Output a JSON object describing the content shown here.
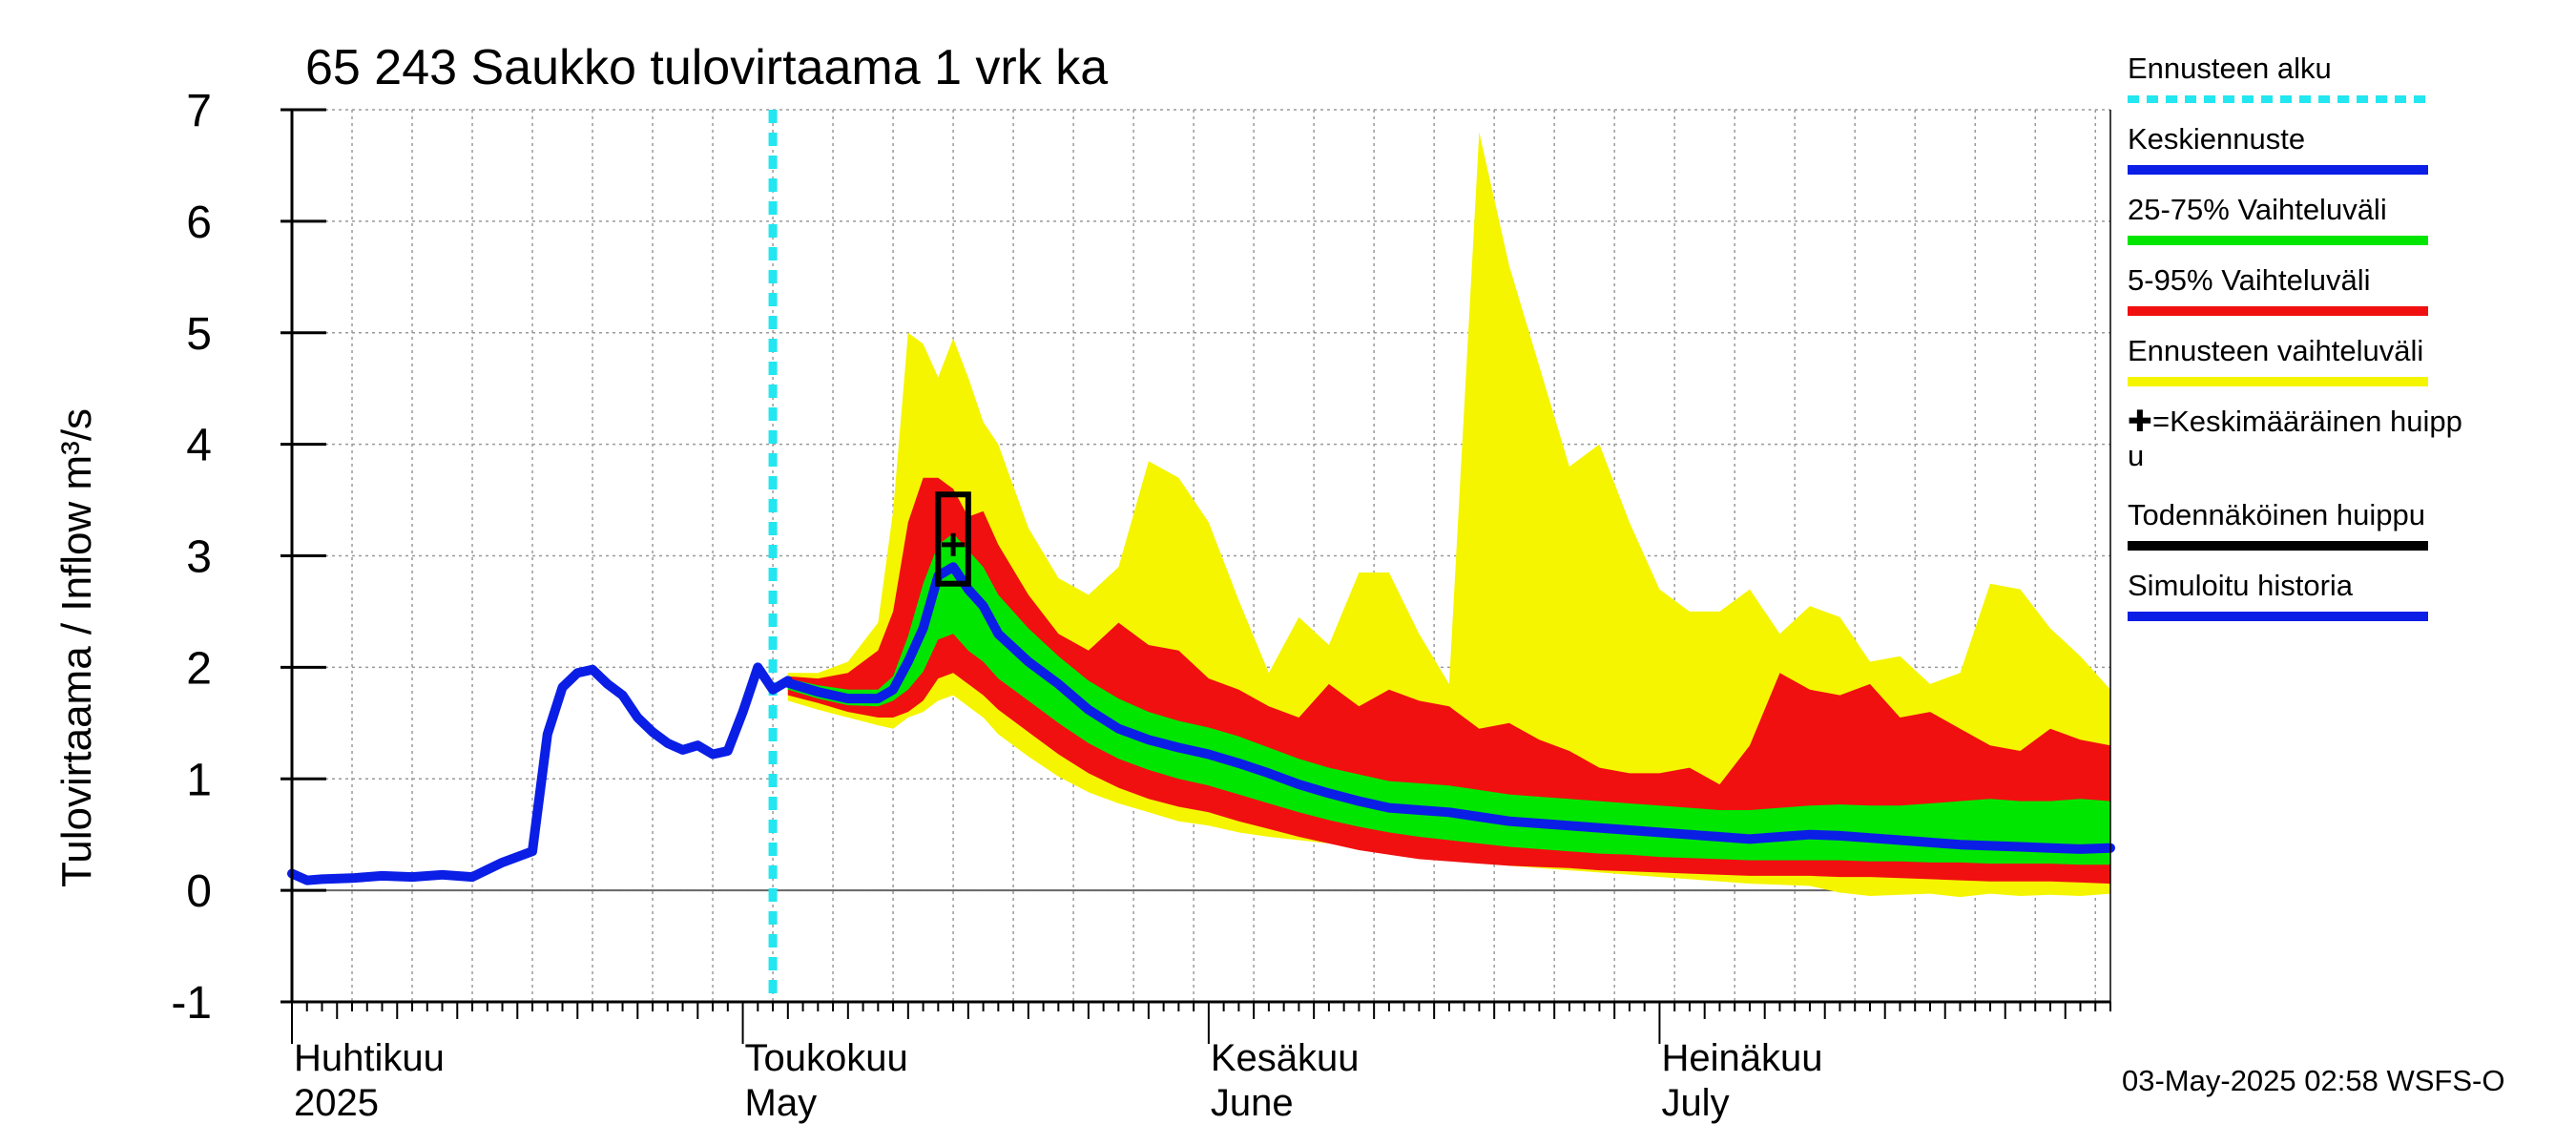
{
  "chart_data": {
    "type": "area",
    "title": "65 243 Saukko tulovirtaama 1 vrk ka",
    "ylabel": "Tulovirtaama / Inflow    m³/s",
    "ylim": [
      -1,
      7
    ],
    "yticks": [
      "-1",
      "0",
      "1",
      "2",
      "3",
      "4",
      "5",
      "6",
      "7"
    ],
    "x_range": [
      "2025-04-01",
      "2025-07-31"
    ],
    "forecast_start": "2025-05-03",
    "month_labels": [
      {
        "date": "2025-04-01",
        "fi": "Huhtikuu",
        "en": "2025"
      },
      {
        "date": "2025-05-01",
        "fi": "Toukokuu",
        "en": "May"
      },
      {
        "date": "2025-06-01",
        "fi": "Kesäkuu",
        "en": "June"
      },
      {
        "date": "2025-07-01",
        "fi": "Heinäkuu",
        "en": "July"
      }
    ],
    "grid": true,
    "legend_position": "right",
    "legend": [
      {
        "label": "Ennusteen alku",
        "color": "#22e6f0",
        "style": "dotted"
      },
      {
        "label": "Keskiennuste",
        "color": "#0a1ee6",
        "style": "line"
      },
      {
        "label": "25-75% Vaihteluväli",
        "color": "#00e600",
        "style": "line"
      },
      {
        "label": "5-95% Vaihteluväli",
        "color": "#f01010",
        "style": "line"
      },
      {
        "label": "Ennusteen vaihteluväli",
        "color": "#f5f500",
        "style": "line"
      },
      {
        "label": "✚=Keskimääräinen huipp",
        "label2": "u",
        "style": "text"
      },
      {
        "label": "Todennäköinen huippu",
        "color": "#000000",
        "style": "line"
      },
      {
        "label": "Simuloitu historia",
        "color": "#0a1ee6",
        "style": "line"
      }
    ],
    "history": {
      "x": [
        "2025-04-01",
        "2025-04-02",
        "2025-04-03",
        "2025-04-05",
        "2025-04-07",
        "2025-04-09",
        "2025-04-11",
        "2025-04-13",
        "2025-04-15",
        "2025-04-17",
        "2025-04-18",
        "2025-04-19",
        "2025-04-20",
        "2025-04-21",
        "2025-04-22",
        "2025-04-23",
        "2025-04-24",
        "2025-04-25",
        "2025-04-26",
        "2025-04-27",
        "2025-04-28",
        "2025-04-29",
        "2025-04-30",
        "2025-05-01",
        "2025-05-02",
        "2025-05-03",
        "2025-05-04"
      ],
      "y": [
        0.15,
        0.09,
        0.1,
        0.11,
        0.13,
        0.12,
        0.14,
        0.12,
        0.25,
        0.35,
        1.4,
        1.82,
        1.95,
        1.98,
        1.85,
        1.75,
        1.55,
        1.42,
        1.32,
        1.26,
        1.3,
        1.22,
        1.25,
        1.6,
        2.0,
        1.8,
        1.88
      ]
    },
    "forecast": {
      "x": [
        "2025-05-04",
        "2025-05-06",
        "2025-05-08",
        "2025-05-10",
        "2025-05-11",
        "2025-05-12",
        "2025-05-13",
        "2025-05-14",
        "2025-05-15",
        "2025-05-16",
        "2025-05-17",
        "2025-05-18",
        "2025-05-20",
        "2025-05-22",
        "2025-05-24",
        "2025-05-26",
        "2025-05-28",
        "2025-05-30",
        "2025-06-01",
        "2025-06-03",
        "2025-06-05",
        "2025-06-07",
        "2025-06-09",
        "2025-06-11",
        "2025-06-13",
        "2025-06-15",
        "2025-06-17",
        "2025-06-19",
        "2025-06-21",
        "2025-06-23",
        "2025-06-25",
        "2025-06-27",
        "2025-06-29",
        "2025-07-01",
        "2025-07-03",
        "2025-07-05",
        "2025-07-07",
        "2025-07-09",
        "2025-07-11",
        "2025-07-13",
        "2025-07-15",
        "2025-07-17",
        "2025-07-19",
        "2025-07-21",
        "2025-07-23",
        "2025-07-25",
        "2025-07-27",
        "2025-07-29",
        "2025-07-31"
      ],
      "mean": [
        1.86,
        1.78,
        1.72,
        1.72,
        1.8,
        2.05,
        2.35,
        2.82,
        2.9,
        2.7,
        2.55,
        2.3,
        2.05,
        1.85,
        1.62,
        1.45,
        1.35,
        1.28,
        1.22,
        1.14,
        1.05,
        0.95,
        0.87,
        0.8,
        0.74,
        0.72,
        0.7,
        0.66,
        0.62,
        0.6,
        0.58,
        0.56,
        0.54,
        0.52,
        0.5,
        0.48,
        0.46,
        0.48,
        0.5,
        0.49,
        0.47,
        0.45,
        0.43,
        0.41,
        0.4,
        0.39,
        0.38,
        0.37,
        0.38
      ],
      "p25": [
        1.8,
        1.72,
        1.66,
        1.65,
        1.7,
        1.8,
        1.96,
        2.25,
        2.3,
        2.15,
        2.05,
        1.9,
        1.7,
        1.5,
        1.32,
        1.18,
        1.08,
        1.0,
        0.94,
        0.86,
        0.78,
        0.7,
        0.63,
        0.57,
        0.52,
        0.48,
        0.45,
        0.42,
        0.39,
        0.37,
        0.35,
        0.33,
        0.32,
        0.3,
        0.29,
        0.28,
        0.27,
        0.27,
        0.27,
        0.27,
        0.26,
        0.26,
        0.25,
        0.25,
        0.24,
        0.24,
        0.24,
        0.23,
        0.23
      ],
      "p75": [
        1.9,
        1.84,
        1.8,
        1.8,
        1.92,
        2.28,
        2.75,
        3.1,
        3.2,
        3.05,
        2.9,
        2.65,
        2.35,
        2.1,
        1.88,
        1.72,
        1.6,
        1.52,
        1.46,
        1.38,
        1.28,
        1.18,
        1.1,
        1.04,
        0.98,
        0.96,
        0.94,
        0.9,
        0.86,
        0.84,
        0.82,
        0.8,
        0.78,
        0.76,
        0.74,
        0.72,
        0.72,
        0.74,
        0.76,
        0.77,
        0.76,
        0.76,
        0.78,
        0.8,
        0.82,
        0.8,
        0.8,
        0.82,
        0.8
      ],
      "p5": [
        1.75,
        1.68,
        1.6,
        1.55,
        1.55,
        1.6,
        1.7,
        1.9,
        1.95,
        1.85,
        1.75,
        1.62,
        1.42,
        1.22,
        1.05,
        0.92,
        0.82,
        0.75,
        0.7,
        0.62,
        0.55,
        0.48,
        0.42,
        0.36,
        0.32,
        0.28,
        0.26,
        0.24,
        0.22,
        0.21,
        0.2,
        0.18,
        0.17,
        0.16,
        0.15,
        0.14,
        0.13,
        0.13,
        0.13,
        0.12,
        0.12,
        0.11,
        0.1,
        0.09,
        0.08,
        0.08,
        0.08,
        0.07,
        0.06
      ],
      "p95": [
        1.92,
        1.9,
        1.95,
        2.15,
        2.5,
        3.3,
        3.7,
        3.7,
        3.6,
        3.35,
        3.4,
        3.1,
        2.65,
        2.3,
        2.15,
        2.4,
        2.2,
        2.15,
        1.9,
        1.8,
        1.65,
        1.55,
        1.85,
        1.65,
        1.8,
        1.7,
        1.65,
        1.45,
        1.5,
        1.35,
        1.25,
        1.1,
        1.05,
        1.05,
        1.1,
        0.95,
        1.3,
        1.95,
        1.8,
        1.75,
        1.85,
        1.55,
        1.6,
        1.45,
        1.3,
        1.25,
        1.45,
        1.35,
        1.3
      ],
      "ens_min": [
        1.7,
        1.62,
        1.55,
        1.48,
        1.45,
        1.55,
        1.6,
        1.7,
        1.75,
        1.65,
        1.55,
        1.4,
        1.2,
        1.02,
        0.88,
        0.78,
        0.7,
        0.62,
        0.58,
        0.52,
        0.48,
        0.45,
        0.42,
        0.4,
        0.38,
        0.32,
        0.28,
        0.25,
        0.22,
        0.2,
        0.18,
        0.16,
        0.14,
        0.12,
        0.1,
        0.08,
        0.06,
        0.05,
        0.04,
        -0.02,
        -0.05,
        -0.04,
        -0.03,
        -0.06,
        -0.03,
        -0.05,
        -0.04,
        -0.05,
        -0.03
      ],
      "ens_max": [
        1.95,
        1.95,
        2.05,
        2.4,
        3.4,
        5.0,
        4.9,
        4.6,
        4.95,
        4.6,
        4.2,
        4.0,
        3.25,
        2.8,
        2.65,
        2.9,
        3.85,
        3.7,
        3.3,
        2.6,
        1.95,
        2.45,
        2.2,
        2.85,
        2.85,
        2.3,
        1.85,
        6.8,
        5.6,
        4.7,
        3.8,
        4.0,
        3.3,
        2.7,
        2.5,
        2.5,
        2.7,
        2.3,
        2.55,
        2.45,
        2.05,
        2.1,
        1.85,
        1.95,
        2.75,
        2.7,
        2.35,
        2.1,
        1.8
      ]
    },
    "mean_peak": {
      "x": "2025-05-15",
      "y": 3.1
    },
    "probable_peak_box": {
      "x0": "2025-05-14",
      "x1": "2025-05-16",
      "y0": 2.75,
      "y1": 3.55
    },
    "footer": "03-May-2025 02:58 WSFS-O"
  }
}
